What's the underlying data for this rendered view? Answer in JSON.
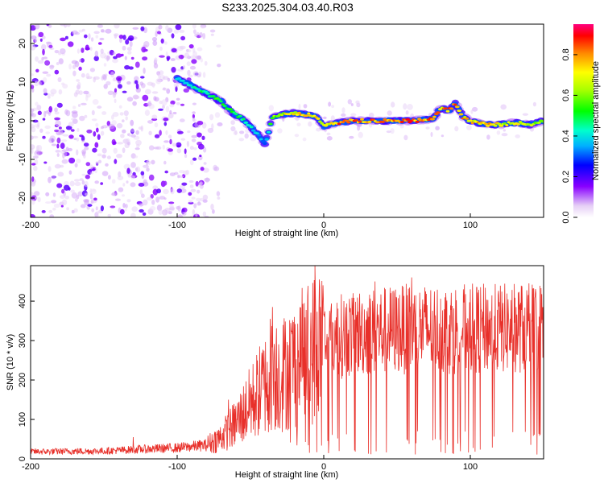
{
  "title": "S233.2025.304.03.40.R03",
  "chart_data": [
    {
      "type": "heatmap",
      "name": "spectrogram",
      "xlabel": "Height of straight line (km)",
      "ylabel": "Frequency (Hz)",
      "xlim": [
        -200,
        150
      ],
      "ylim": [
        -25,
        25
      ],
      "xticks": [
        -200,
        -100,
        0,
        100
      ],
      "yticks": [
        -20,
        -10,
        0,
        10,
        20
      ],
      "colorbar": {
        "label": "Normalized spectral amplitude",
        "range": [
          0,
          0.95
        ],
        "ticks": [
          0.0,
          0.2,
          0.4,
          0.6,
          0.8
        ]
      },
      "ridge": {
        "x": [
          -100,
          -90,
          -80,
          -75,
          -70,
          -65,
          -60,
          -55,
          -50,
          -45,
          -40,
          -35,
          -30,
          -20,
          -10,
          -5,
          0,
          10,
          20,
          40,
          60,
          75,
          80,
          85,
          90,
          95,
          100,
          110,
          120,
          130,
          140,
          150
        ],
        "freq_hz": [
          11,
          9,
          7,
          6,
          5,
          3,
          1.5,
          0.5,
          -1.5,
          -3.5,
          -6,
          1,
          1.5,
          2,
          1.5,
          1,
          -1.5,
          -0.5,
          0,
          0,
          0,
          0.5,
          3.5,
          2.5,
          4.5,
          1,
          0,
          -1,
          -1,
          -0.5,
          -1,
          0
        ],
        "amplitude": [
          0.45,
          0.45,
          0.5,
          0.55,
          0.55,
          0.6,
          0.55,
          0.5,
          0.45,
          0.4,
          0.35,
          0.6,
          0.7,
          0.75,
          0.8,
          0.75,
          0.7,
          0.85,
          0.85,
          0.85,
          0.9,
          0.85,
          0.8,
          0.85,
          0.85,
          0.8,
          0.75,
          0.8,
          0.75,
          0.7,
          0.7,
          0.6
        ]
      }
    },
    {
      "type": "line",
      "name": "snr",
      "xlabel": "Height of straight line (km)",
      "ylabel": "SNR (10 * v/v)",
      "xlim": [
        -200,
        150
      ],
      "ylim": [
        0,
        490
      ],
      "xticks": [
        -200,
        -100,
        0,
        100
      ],
      "yticks": [
        0,
        100,
        200,
        300,
        400
      ],
      "color": "#e8302a",
      "envelope": {
        "x": [
          -200,
          -150,
          -120,
          -100,
          -80,
          -70,
          -60,
          -50,
          -40,
          -35,
          -30,
          -20,
          -10,
          0,
          10,
          20,
          40,
          60,
          80,
          100,
          120,
          150
        ],
        "y": [
          18,
          20,
          25,
          28,
          35,
          55,
          90,
          140,
          190,
          230,
          210,
          240,
          270,
          300,
          310,
          320,
          325,
          330,
          330,
          330,
          330,
          335
        ]
      },
      "peaks": [
        [
          -130,
          55
        ],
        [
          -65,
          150
        ],
        [
          -50,
          190
        ],
        [
          -35,
          385
        ],
        [
          -15,
          320
        ],
        [
          -6,
          490
        ],
        [
          20,
          420
        ],
        [
          35,
          450
        ],
        [
          60,
          460
        ],
        [
          100,
          430
        ],
        [
          140,
          445
        ]
      ]
    }
  ]
}
